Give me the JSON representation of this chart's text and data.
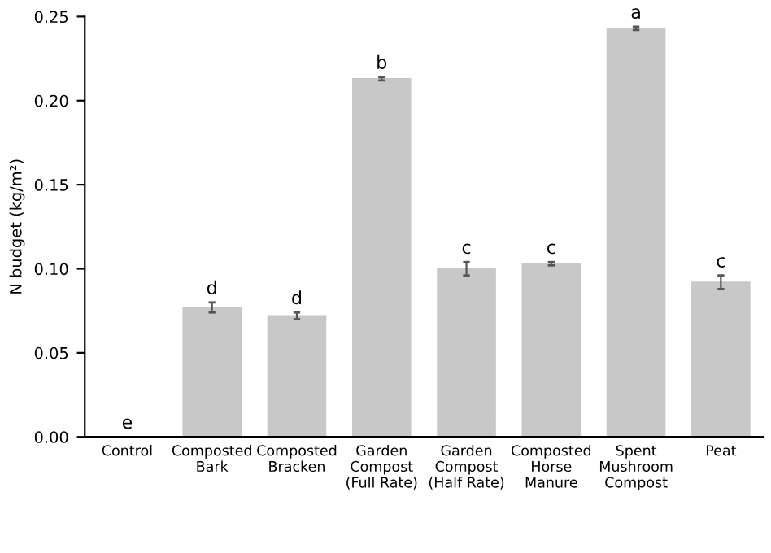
{
  "chart_data": {
    "type": "bar",
    "ylabel": "N budget (kg/m²)",
    "categories": [
      "Control",
      "Composted\nBark",
      "Composted\nBracken",
      "Garden\nCompost\n(Full Rate)",
      "Garden\nCompost\n(Half Rate)",
      "Composted\nHorse\nManure",
      "Spent\nMushroom\nCompost",
      "Peat"
    ],
    "values": [
      0,
      0.077,
      0.072,
      0.213,
      0.1,
      0.103,
      0.243,
      0.092
    ],
    "errors": [
      null,
      0.003,
      0.002,
      0.001,
      0.004,
      0.001,
      0.001,
      0.004
    ],
    "color": "#c8c8c8",
    "ylim": [
      0,
      0.25
    ],
    "yticks": [
      {
        "value": 0,
        "label": "0.00"
      },
      {
        "value": 0.05,
        "label": "0.05"
      },
      {
        "value": 0.1,
        "label": "0.10"
      },
      {
        "value": 0.15,
        "label": "0.15"
      },
      {
        "value": 0.2,
        "label": "0.20"
      },
      {
        "value": 0.25,
        "label": "0.25"
      }
    ],
    "grid": false,
    "annotations": [
      {
        "text": "e",
        "x": "Control",
        "y": 0
      },
      {
        "text": "d",
        "x": "Composted\nBark",
        "y": 0.077
      },
      {
        "text": "d",
        "x": "Composted\nBracken",
        "y": 0.072
      },
      {
        "text": "b",
        "x": "Garden\nCompost\n(Full Rate)",
        "y": 0.213
      },
      {
        "text": "c",
        "x": "Garden\nCompost\n(Half Rate)",
        "y": 0.1
      },
      {
        "text": "c",
        "x": "Composted\nHorse\nManure",
        "y": 0.103
      },
      {
        "text": "a",
        "x": "Spent\nMushroom\nCompost",
        "y": 0.243
      },
      {
        "text": "c",
        "x": "Peat",
        "y": 0.092
      }
    ]
  }
}
